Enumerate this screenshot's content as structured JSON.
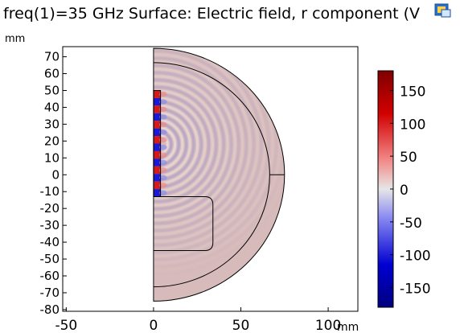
{
  "title": "freq(1)=35 GHz Surface: Electric field, r component (V",
  "chart_data": {
    "type": "heatmap",
    "title": "freq(1)=35 GHz Surface: Electric field, r component (V",
    "x_unit": "mm",
    "y_unit": "mm",
    "xlim": [
      -52,
      117
    ],
    "ylim": [
      -81,
      76
    ],
    "x_ticks": [
      "-50",
      "0",
      "50",
      "100"
    ],
    "y_ticks": [
      "70",
      "60",
      "50",
      "40",
      "30",
      "20",
      "10",
      "0",
      "-10",
      "-20",
      "-30",
      "-40",
      "-50",
      "-60",
      "-70",
      "-80"
    ],
    "x_tick_values": [
      -50,
      0,
      50,
      100
    ],
    "y_tick_values": [
      70,
      60,
      50,
      40,
      30,
      20,
      10,
      0,
      -10,
      -20,
      -30,
      -40,
      -50,
      -60,
      -70,
      -80
    ],
    "colorbar": {
      "ticks": [
        "150",
        "100",
        "50",
        "0",
        "-50",
        "-100",
        "-150"
      ],
      "tick_values": [
        150,
        100,
        50,
        0,
        -50,
        -100,
        -150
      ],
      "range": [
        -180,
        180
      ]
    },
    "geometry": {
      "outer_radius": 75,
      "inner_radius": 66.5,
      "plate": {
        "r0": 0,
        "r1": 4,
        "z0": -13,
        "z1": 50
      },
      "block": {
        "r0": 0,
        "r1": 34,
        "z0": -45,
        "z1": -13
      },
      "dividing_line": {
        "r0": 66.5,
        "r1": 75,
        "z": 0
      }
    },
    "grid": false,
    "colors": {
      "background_field": "#d7bbbb",
      "positive_max": "#7f0000",
      "negative_max": "#00007f",
      "zero": "#e0e0e0"
    }
  }
}
